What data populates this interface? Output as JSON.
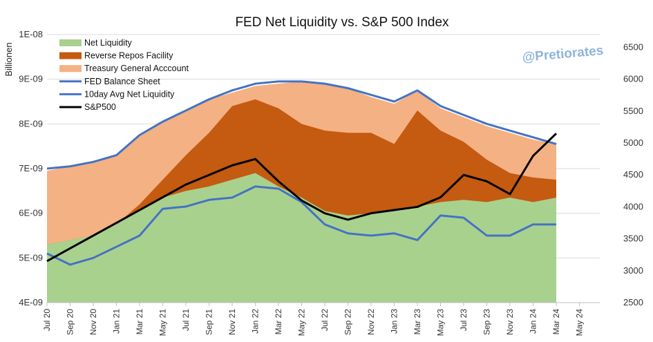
{
  "colors": {
    "net_liquidity": "#a9d18e",
    "net_liquidity_edge": "#70ad47",
    "rrp": "#c55a11",
    "tga": "#f4b183",
    "balance_sheet": "#4472c4",
    "avg10": "#4472c4",
    "sp500": "#000000",
    "gridline": "#d9d9d9",
    "watermark": "#8fb3dd"
  },
  "watermark": "@Pretiorates",
  "chart_data": {
    "type": "area",
    "title": "FED Net Liquidity vs. S&P 500 Index",
    "ylabel": "Billionen",
    "y_left_ticks": [
      "4E-09",
      "5E-09",
      "6E-09",
      "7E-09",
      "8E-09",
      "9E-09",
      "1E-08"
    ],
    "y_left_range": [
      4,
      10
    ],
    "y_right_ticks": [
      "2500",
      "3000",
      "3500",
      "4000",
      "4500",
      "5000",
      "5500",
      "6000",
      "6500"
    ],
    "y_right_range": [
      2500,
      6700
    ],
    "x_ticks": [
      "Jul 20",
      "Sep 20",
      "Nov 20",
      "Jan 21",
      "Mar 21",
      "May 21",
      "Jul 21",
      "Sep 21",
      "Nov 21",
      "Jan 22",
      "Mar 22",
      "May 22",
      "Jul 22",
      "Sep 22",
      "Nov 22",
      "Jan 23",
      "Mar 23",
      "May 23",
      "Jul 23",
      "Sep 23",
      "Nov 23",
      "Jan 24",
      "Mar 24",
      "May 24"
    ],
    "grid": true,
    "legend_position": "top-left",
    "x_months": [
      "Jul 20",
      "Sep 20",
      "Nov 20",
      "Jan 21",
      "Mar 21",
      "May 21",
      "Jul 21",
      "Sep 21",
      "Nov 21",
      "Jan 22",
      "Mar 22",
      "May 22",
      "Jul 22",
      "Sep 22",
      "Nov 22",
      "Jan 23",
      "Mar 23",
      "May 23",
      "Jul 23",
      "Sep 23",
      "Nov 23",
      "Jan 24",
      "Mar 24"
    ],
    "series": [
      {
        "name": "Net Liquidity",
        "axis": "left",
        "style": "area",
        "values": [
          5.3,
          5.4,
          5.5,
          5.75,
          6.1,
          6.35,
          6.5,
          6.6,
          6.75,
          6.9,
          6.6,
          6.35,
          6.05,
          5.95,
          6.0,
          6.05,
          6.15,
          6.25,
          6.3,
          6.25,
          6.35,
          6.25,
          6.35
        ]
      },
      {
        "name": "Reverse Repos Facility",
        "axis": "left",
        "style": "area",
        "values": [
          5.3,
          5.4,
          5.5,
          5.75,
          6.2,
          6.75,
          7.3,
          7.8,
          8.4,
          8.55,
          8.35,
          8.0,
          7.85,
          7.8,
          7.8,
          7.55,
          8.3,
          7.85,
          7.6,
          7.2,
          6.9,
          6.8,
          6.75
        ]
      },
      {
        "name": "Treasury General Acccount",
        "axis": "left",
        "style": "area",
        "values": [
          6.95,
          7.05,
          7.15,
          7.3,
          7.75,
          8.05,
          8.3,
          8.55,
          8.7,
          8.85,
          8.9,
          8.95,
          8.9,
          8.8,
          8.6,
          8.45,
          8.75,
          8.35,
          8.15,
          7.95,
          7.8,
          7.65,
          7.55
        ]
      },
      {
        "name": "FED Balance Sheet",
        "axis": "left",
        "style": "line",
        "values": [
          7.0,
          7.05,
          7.15,
          7.3,
          7.75,
          8.05,
          8.3,
          8.55,
          8.75,
          8.9,
          8.95,
          8.95,
          8.9,
          8.8,
          8.65,
          8.5,
          8.75,
          8.4,
          8.2,
          8.0,
          7.85,
          7.7,
          7.55
        ]
      },
      {
        "name": "10day Avg Net Liquidity",
        "axis": "left",
        "style": "line",
        "values": [
          5.1,
          4.85,
          5.0,
          5.25,
          5.5,
          6.1,
          6.15,
          6.3,
          6.35,
          6.6,
          6.55,
          6.25,
          5.75,
          5.55,
          5.5,
          5.55,
          5.4,
          5.95,
          5.9,
          5.5,
          5.5,
          5.75,
          5.75
        ]
      },
      {
        "name": "S&P500",
        "axis": "right",
        "style": "line",
        "values": [
          3150,
          3350,
          3550,
          3750,
          3950,
          4150,
          4350,
          4500,
          4650,
          4750,
          4400,
          4100,
          3900,
          3800,
          3900,
          3950,
          4000,
          4150,
          4500,
          4400,
          4200,
          4800,
          5150
        ]
      }
    ]
  }
}
